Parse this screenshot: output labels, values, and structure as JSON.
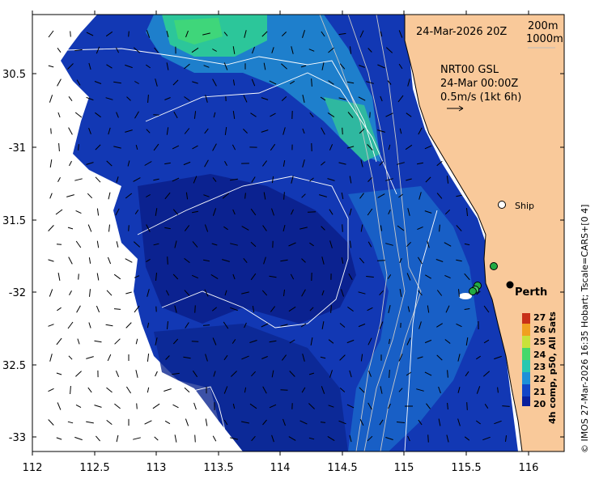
{
  "map": {
    "date_label": "24-Mar-2026 20Z",
    "isobath_label_200": "200m",
    "isobath_label_1000": "1000m",
    "current_source": "NRT00 GSL",
    "current_date": "24-Mar 00:00Z",
    "current_scale": "0.5m/s (1kt 6h)",
    "ship_label": "Ship",
    "city_label": "Perth",
    "credit": "© IMOS 27-Mar-2026 16:35 Hobart; Tscale=CARS+[0 4]",
    "colorbar_title": "4h comp, p50, All Sats",
    "colorbar_ticks": [
      "27",
      "26",
      "25",
      "24",
      "23",
      "22",
      "21",
      "20"
    ],
    "longitudes": [
      "112",
      "112.5",
      "113",
      "113.5",
      "114",
      "114.5",
      "115",
      "115.5",
      "116"
    ],
    "latitudes": [
      "30.5",
      "-31",
      "31.5",
      "-32",
      "32.5",
      "-33"
    ],
    "colors": {
      "land": "#f9c99a",
      "sst_20": "#0a1f9c",
      "sst_21": "#1345c7",
      "sst_22": "#1e90d8",
      "sst_23": "#27c7b0",
      "sst_24": "#45d86a",
      "sst_25": "#c8e23a",
      "sst_26": "#f0a020",
      "sst_27": "#c83018",
      "ship_marker": "#ffffff",
      "station_marker": "#22aa44",
      "city_marker": "#000000"
    }
  }
}
